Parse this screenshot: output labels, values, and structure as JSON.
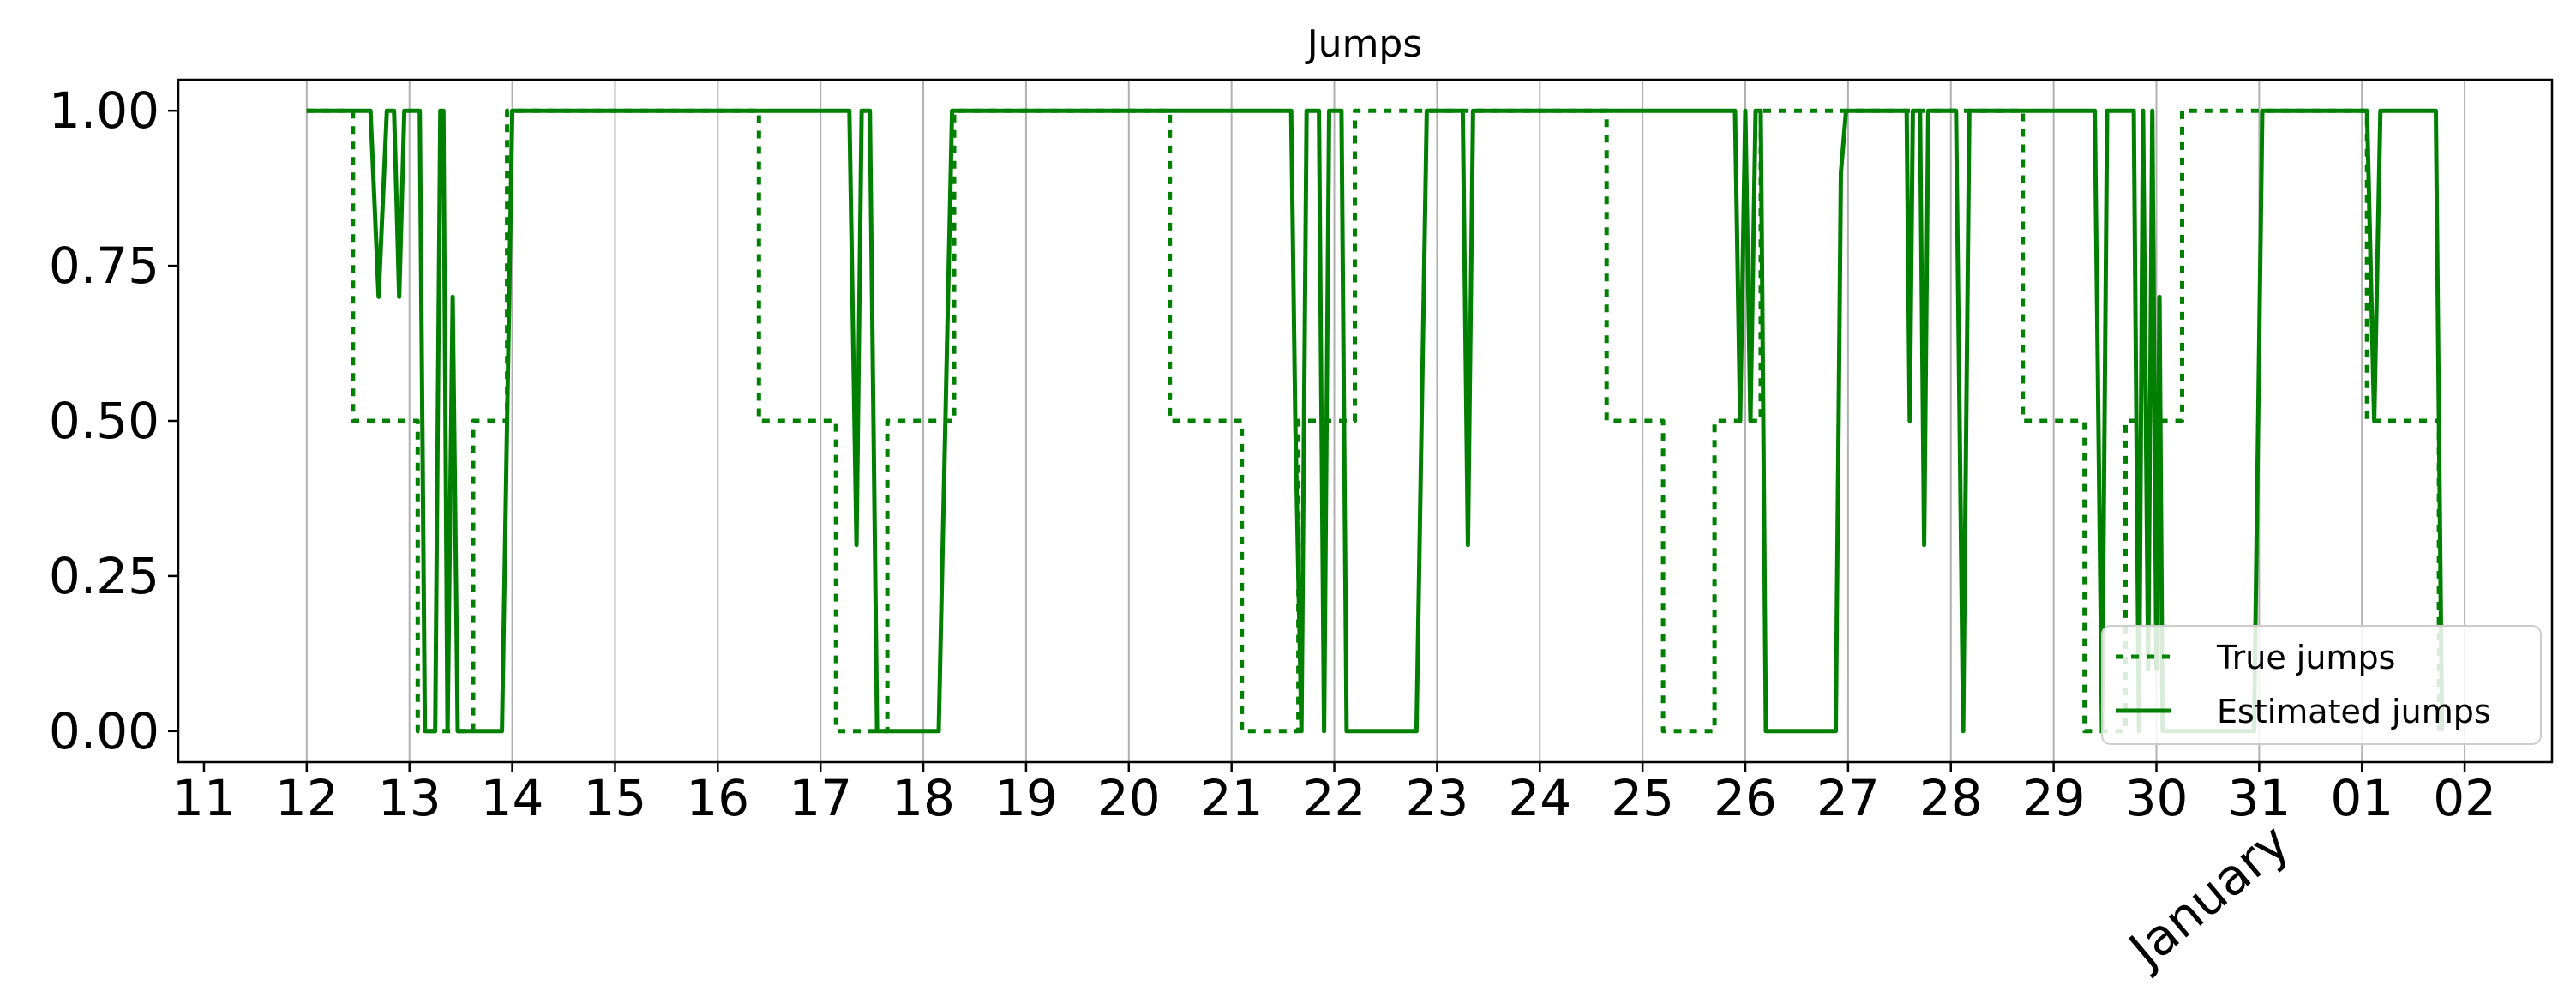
{
  "chart_data": {
    "type": "line",
    "title": "Jumps",
    "xlabel": "",
    "ylabel": "",
    "x_ticks": [
      "11",
      "12",
      "13",
      "14",
      "15",
      "16",
      "17",
      "18",
      "19",
      "20",
      "21",
      "22",
      "23",
      "24",
      "25",
      "26",
      "27",
      "28",
      "29",
      "30",
      "31",
      "01",
      "02"
    ],
    "x_month_label": "January",
    "xlim": [
      -0.25,
      22.85
    ],
    "ylim": [
      -0.05,
      1.05
    ],
    "y_ticks": [
      "0.00",
      "0.25",
      "0.50",
      "0.75",
      "1.00"
    ],
    "grid": "vertical",
    "legend": "bottom-right",
    "colors": {
      "series": "#008000",
      "grid": "#b0b0b0",
      "axis": "#000000"
    },
    "series": [
      {
        "name": "True jumps",
        "style": "dashed",
        "points": [
          [
            1.0,
            1.0
          ],
          [
            1.45,
            1.0
          ],
          [
            1.45,
            0.5
          ],
          [
            2.08,
            0.5
          ],
          [
            2.08,
            0.0
          ],
          [
            2.62,
            0.0
          ],
          [
            2.62,
            0.5
          ],
          [
            2.95,
            0.5
          ],
          [
            2.95,
            1.0
          ],
          [
            5.4,
            1.0
          ],
          [
            5.4,
            0.5
          ],
          [
            6.15,
            0.5
          ],
          [
            6.15,
            0.0
          ],
          [
            6.65,
            0.0
          ],
          [
            6.65,
            0.5
          ],
          [
            7.3,
            0.5
          ],
          [
            7.3,
            1.0
          ],
          [
            9.4,
            1.0
          ],
          [
            9.4,
            0.5
          ],
          [
            10.1,
            0.5
          ],
          [
            10.1,
            0.0
          ],
          [
            10.65,
            0.0
          ],
          [
            10.65,
            0.5
          ],
          [
            11.2,
            0.5
          ],
          [
            11.2,
            1.0
          ],
          [
            13.65,
            1.0
          ],
          [
            13.65,
            0.5
          ],
          [
            14.2,
            0.5
          ],
          [
            14.2,
            0.0
          ],
          [
            14.7,
            0.0
          ],
          [
            14.7,
            0.5
          ],
          [
            15.15,
            0.5
          ],
          [
            15.15,
            1.0
          ],
          [
            17.7,
            1.0
          ],
          [
            17.7,
            0.5
          ],
          [
            18.3,
            0.5
          ],
          [
            18.3,
            0.0
          ],
          [
            18.7,
            0.0
          ],
          [
            18.7,
            0.5
          ],
          [
            19.25,
            0.5
          ],
          [
            19.25,
            1.0
          ],
          [
            21.05,
            1.0
          ],
          [
            21.05,
            0.5
          ],
          [
            21.75,
            0.5
          ],
          [
            21.75,
            0.0
          ]
        ]
      },
      {
        "name": "Estimated jumps",
        "style": "solid",
        "points": [
          [
            1.0,
            1.0
          ],
          [
            1.62,
            1.0
          ],
          [
            1.7,
            0.7
          ],
          [
            1.78,
            1.0
          ],
          [
            1.85,
            1.0
          ],
          [
            1.9,
            0.7
          ],
          [
            1.95,
            1.0
          ],
          [
            2.1,
            1.0
          ],
          [
            2.15,
            0.0
          ],
          [
            2.25,
            0.0
          ],
          [
            2.3,
            1.0
          ],
          [
            2.33,
            1.0
          ],
          [
            2.37,
            0.0
          ],
          [
            2.42,
            0.7
          ],
          [
            2.47,
            0.0
          ],
          [
            2.9,
            0.0
          ],
          [
            3.0,
            1.0
          ],
          [
            6.28,
            1.0
          ],
          [
            6.35,
            0.3
          ],
          [
            6.4,
            1.0
          ],
          [
            6.48,
            1.0
          ],
          [
            6.55,
            0.0
          ],
          [
            7.15,
            0.0
          ],
          [
            7.28,
            1.0
          ],
          [
            10.58,
            1.0
          ],
          [
            10.62,
            0.5
          ],
          [
            10.68,
            0.0
          ],
          [
            10.73,
            1.0
          ],
          [
            10.85,
            1.0
          ],
          [
            10.9,
            0.0
          ],
          [
            10.95,
            1.0
          ],
          [
            11.07,
            1.0
          ],
          [
            11.12,
            0.0
          ],
          [
            11.8,
            0.0
          ],
          [
            11.9,
            1.0
          ],
          [
            12.25,
            1.0
          ],
          [
            12.3,
            0.3
          ],
          [
            12.35,
            1.0
          ],
          [
            14.9,
            1.0
          ],
          [
            14.95,
            0.5
          ],
          [
            15.0,
            1.0
          ],
          [
            15.05,
            0.5
          ],
          [
            15.1,
            1.0
          ],
          [
            15.15,
            1.0
          ],
          [
            15.2,
            0.0
          ],
          [
            15.88,
            0.0
          ],
          [
            15.93,
            0.9
          ],
          [
            15.98,
            1.0
          ],
          [
            16.57,
            1.0
          ],
          [
            16.6,
            0.5
          ],
          [
            16.63,
            1.0
          ],
          [
            16.7,
            1.0
          ],
          [
            16.74,
            0.3
          ],
          [
            16.78,
            1.0
          ],
          [
            17.05,
            1.0
          ],
          [
            17.12,
            0.0
          ],
          [
            17.18,
            1.0
          ],
          [
            18.4,
            1.0
          ],
          [
            18.47,
            0.0
          ],
          [
            18.52,
            1.0
          ],
          [
            18.78,
            1.0
          ],
          [
            18.83,
            0.0
          ],
          [
            18.87,
            1.0
          ],
          [
            18.92,
            0.1
          ],
          [
            18.96,
            1.0
          ],
          [
            19.0,
            0.1
          ],
          [
            19.03,
            0.7
          ],
          [
            19.06,
            0.0
          ],
          [
            19.95,
            0.0
          ],
          [
            20.03,
            1.0
          ],
          [
            21.05,
            1.0
          ],
          [
            21.12,
            0.5
          ],
          [
            21.18,
            1.0
          ],
          [
            21.72,
            1.0
          ],
          [
            21.78,
            0.0
          ]
        ]
      }
    ]
  }
}
